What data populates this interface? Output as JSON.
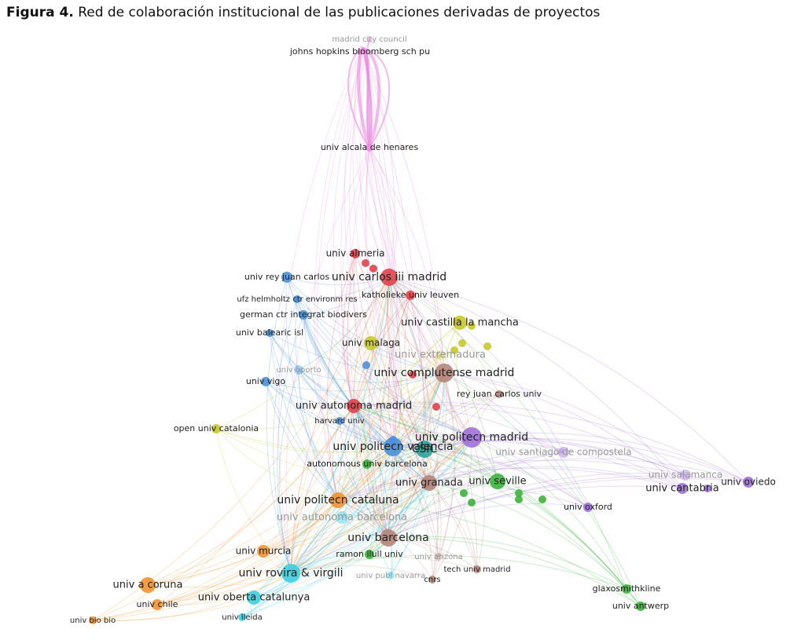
{
  "figure": {
    "label": "Figura 4.",
    "caption": "Red de colaboración institucional de las publicaciones derivadas de proyectos"
  },
  "nodes": [
    {
      "label": "madrid city council"
    },
    {
      "label": "johns hopkins bloomberg sch pu"
    },
    {
      "label": "univ alcala de henares"
    },
    {
      "label": "univ almeria"
    },
    {
      "label": "univ rey juan carlos"
    },
    {
      "label": "univ carlos iii madrid"
    },
    {
      "label": "katholieke univ leuven"
    },
    {
      "label": "ufz helmholtz ctr environm res"
    },
    {
      "label": "german ctr integrat biodivers"
    },
    {
      "label": "univ balearic isl"
    },
    {
      "label": "univ castilla la mancha"
    },
    {
      "label": "univ malaga"
    },
    {
      "label": "univ extremadura"
    },
    {
      "label": "univ oporto"
    },
    {
      "label": "univ complutense madrid"
    },
    {
      "label": "univ vigo"
    },
    {
      "label": "rey juan carlos univ"
    },
    {
      "label": "univ autonoma madrid"
    },
    {
      "label": "harvard univ"
    },
    {
      "label": "open univ catalonia"
    },
    {
      "label": "univ politecn madrid"
    },
    {
      "label": "univ politecn valencia"
    },
    {
      "label": "CSIC"
    },
    {
      "label": "univ santiago de compostela"
    },
    {
      "label": "autonomous univ barcelona"
    },
    {
      "label": "univ granada"
    },
    {
      "label": "univ seville"
    },
    {
      "label": "univ salamanca"
    },
    {
      "label": "univ cantabria"
    },
    {
      "label": "univ oviedo"
    },
    {
      "label": "univ oxford"
    },
    {
      "label": "univ politecn cataluna"
    },
    {
      "label": "univ autonoma barcelona"
    },
    {
      "label": "univ barcelona"
    },
    {
      "label": "univ murcia"
    },
    {
      "label": "ramon llull univ"
    },
    {
      "label": "univ arizona"
    },
    {
      "label": "univ rovira & virgili"
    },
    {
      "label": "tech univ madrid"
    },
    {
      "label": "univ publ navarra"
    },
    {
      "label": "cnrs"
    },
    {
      "label": "glaxosmithkline"
    },
    {
      "label": "univ a coruna"
    },
    {
      "label": "univ chile"
    },
    {
      "label": "univ oberta catalunya"
    },
    {
      "label": "univ antwerp"
    },
    {
      "label": "univ lleida"
    },
    {
      "label": "univ bio bio"
    }
  ]
}
